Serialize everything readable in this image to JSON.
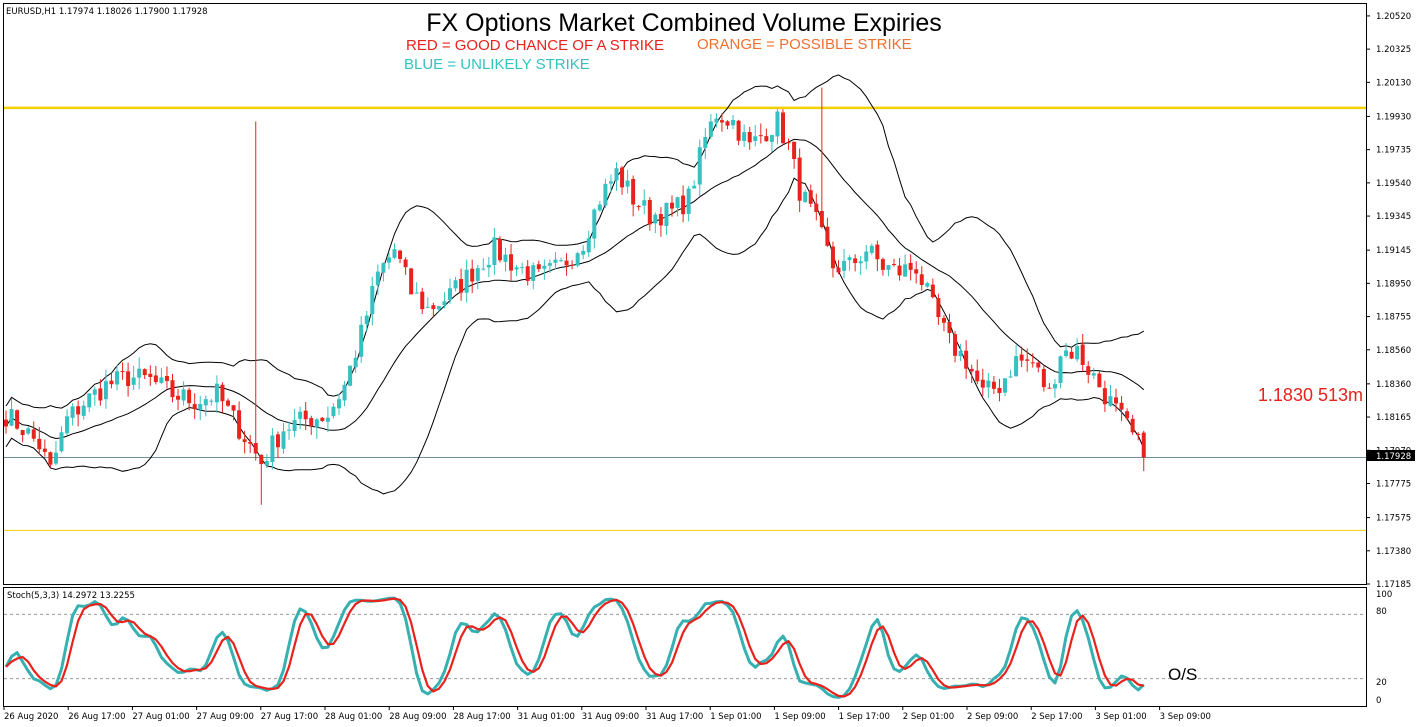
{
  "colors": {
    "bull": "#36c0c0",
    "bear": "#e8221c",
    "band": "#000000",
    "level_line": "#f5d000",
    "price_line": "#6f8f9f",
    "stoch_main": "#36b0b0",
    "stoch_signal": "#e8221c",
    "note_red": "#e8221c",
    "note_orange": "#f07030",
    "note_blue": "#36c0c0"
  },
  "header": {
    "symbol_info": "EURUSD,H1  1.17974 1.18026 1.17900 1.17928",
    "title": "FX Options Market Combined Volume Expiries",
    "legend_red": "RED = GOOD CHANCE OF A STRIKE",
    "legend_orange": "ORANGE = POSSIBLE STRIKE",
    "legend_blue": "BLUE = UNLIKELY STRIKE"
  },
  "expiry_label": "1.1830 513m",
  "current_price_label": "1.17928",
  "stoch": {
    "title": "Stoch(5,3,3) 14.2972 13.2255",
    "oversold_label": "O/S",
    "y_ticks": [
      "100",
      "80",
      "20",
      "0"
    ]
  },
  "chart_data": {
    "type": "candlestick",
    "symbol": "EURUSD",
    "timeframe": "H1",
    "y_ticks": [
      "1.20520",
      "1.20325",
      "1.20130",
      "1.19930",
      "1.19735",
      "1.19540",
      "1.19345",
      "1.19145",
      "1.18950",
      "1.18755",
      "1.18560",
      "1.18360",
      "1.18165",
      "1.17970",
      "1.17775",
      "1.17575",
      "1.17380",
      "1.17185"
    ],
    "x_ticks": [
      "26 Aug 2020",
      "26 Aug 17:00",
      "27 Aug 01:00",
      "27 Aug 09:00",
      "27 Aug 17:00",
      "28 Aug 01:00",
      "28 Aug 09:00",
      "28 Aug 17:00",
      "31 Aug 01:00",
      "31 Aug 09:00",
      "31 Aug 17:00",
      "1 Sep 01:00",
      "1 Sep 09:00",
      "1 Sep 17:00",
      "2 Sep 01:00",
      "2 Sep 09:00",
      "2 Sep 17:00",
      "3 Sep 01:00",
      "3 Sep 09:00"
    ],
    "ylim": [
      1.17185,
      1.2059
    ],
    "horizontal_levels": [
      {
        "price": 1.1998,
        "color": "#f5d000"
      },
      {
        "price": 1.175,
        "color": "#f5d000"
      },
      {
        "price": 1.17928,
        "color": "#6f8f9f"
      }
    ],
    "close_path": [
      [
        0,
        1.1818
      ],
      [
        3,
        1.181
      ],
      [
        6,
        1.18
      ],
      [
        8,
        1.1785
      ],
      [
        11,
        1.1815
      ],
      [
        14,
        1.1825
      ],
      [
        18,
        1.1835
      ],
      [
        22,
        1.184
      ],
      [
        26,
        1.1838
      ],
      [
        30,
        1.183
      ],
      [
        34,
        1.1826
      ],
      [
        38,
        1.183
      ],
      [
        41,
        1.1815
      ],
      [
        44,
        1.18
      ],
      [
        46,
        1.179
      ],
      [
        50,
        1.181
      ],
      [
        54,
        1.1815
      ],
      [
        58,
        1.1818
      ],
      [
        61,
        1.1835
      ],
      [
        64,
        1.1865
      ],
      [
        67,
        1.19
      ],
      [
        70,
        1.1915
      ],
      [
        73,
        1.189
      ],
      [
        76,
        1.188
      ],
      [
        80,
        1.1888
      ],
      [
        84,
        1.1902
      ],
      [
        88,
        1.1915
      ],
      [
        92,
        1.1905
      ],
      [
        96,
        1.1898
      ],
      [
        100,
        1.1905
      ],
      [
        104,
        1.192
      ],
      [
        107,
        1.1945
      ],
      [
        110,
        1.196
      ],
      [
        113,
        1.1945
      ],
      [
        116,
        1.1935
      ],
      [
        120,
        1.1937
      ],
      [
        123,
        1.1945
      ],
      [
        126,
        1.198
      ],
      [
        128,
        1.1995
      ],
      [
        131,
        1.199
      ],
      [
        134,
        1.1975
      ],
      [
        137,
        1.1985
      ],
      [
        139,
        1.199
      ],
      [
        141,
        1.1975
      ],
      [
        143,
        1.195
      ],
      [
        146,
        1.193
      ],
      [
        149,
        1.1905
      ],
      [
        152,
        1.1905
      ],
      [
        155,
        1.1915
      ],
      [
        158,
        1.1905
      ],
      [
        161,
        1.1902
      ],
      [
        164,
        1.1905
      ],
      [
        167,
        1.188
      ],
      [
        170,
        1.186
      ],
      [
        173,
        1.185
      ],
      [
        176,
        1.183
      ],
      [
        179,
        1.1835
      ],
      [
        182,
        1.185
      ],
      [
        185,
        1.1848
      ],
      [
        188,
        1.183
      ],
      [
        190,
        1.1855
      ],
      [
        193,
        1.1855
      ],
      [
        196,
        1.184
      ],
      [
        199,
        1.1825
      ],
      [
        201,
        1.1815
      ],
      [
        203,
        1.1805
      ],
      [
        205,
        1.1795
      ]
    ],
    "bollinger_window": 20,
    "bollinger_deviations": 2,
    "stoch_oscillator": {
      "k": 5,
      "d": 3,
      "slowing": 3,
      "ylim": [
        0,
        100
      ],
      "levels": [
        20,
        80
      ],
      "main_last": 14.2972,
      "signal_last": 13.2255
    }
  }
}
